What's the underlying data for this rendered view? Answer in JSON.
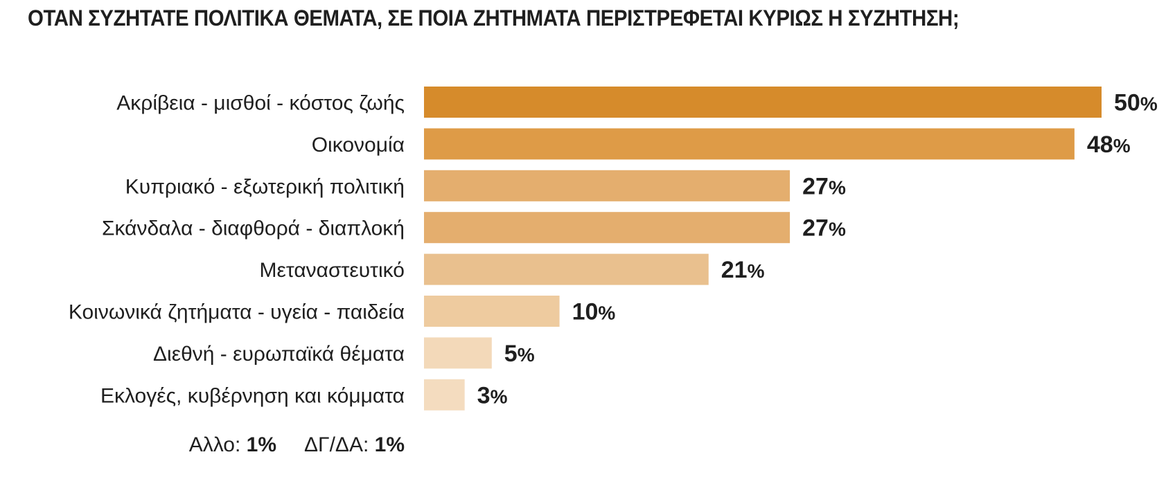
{
  "chart_data": {
    "type": "bar",
    "orientation": "horizontal",
    "title": "ΟΤΑΝ ΣΥΖΗΤΑΤΕ ΠΟΛΙΤΙΚΑ ΘΕΜΑΤΑ, ΣΕ ΠΟΙΑ ΖΗΤΗΜΑΤΑ ΠΕΡΙΣΤΡΕΦΕΤΑΙ ΚΥΡΙΩΣ Η ΣΥΖΗΤΗΣΗ;",
    "categories": [
      "Ακρίβεια - μισθοί - κόστος ζωής",
      "Οικονομία",
      "Κυπριακό - εξωτερική πολιτική",
      "Σκάνδαλα - διαφθορά - διαπλοκή",
      "Μεταναστευτικό",
      "Κοινωνικά ζητήματα - υγεία - παιδεία",
      "Διεθνή - ευρωπαϊκά θέματα",
      "Εκλογές, κυβέρνηση και κόμματα"
    ],
    "values": [
      50,
      48,
      27,
      27,
      21,
      10,
      5,
      3
    ],
    "unit": "%",
    "bar_colors": [
      "#d68b2b",
      "#de9b47",
      "#e4ae6e",
      "#e4ae6e",
      "#e9c08e",
      "#eecb9f",
      "#f3d9b9",
      "#f4dcbf"
    ],
    "xlim": [
      0,
      50
    ],
    "grid": false,
    "legend": "none"
  },
  "footnotes": [
    {
      "label": "Αλλο:",
      "value": "1%"
    },
    {
      "label": "ΔΓ/ΔΑ:",
      "value": "1%"
    }
  ]
}
